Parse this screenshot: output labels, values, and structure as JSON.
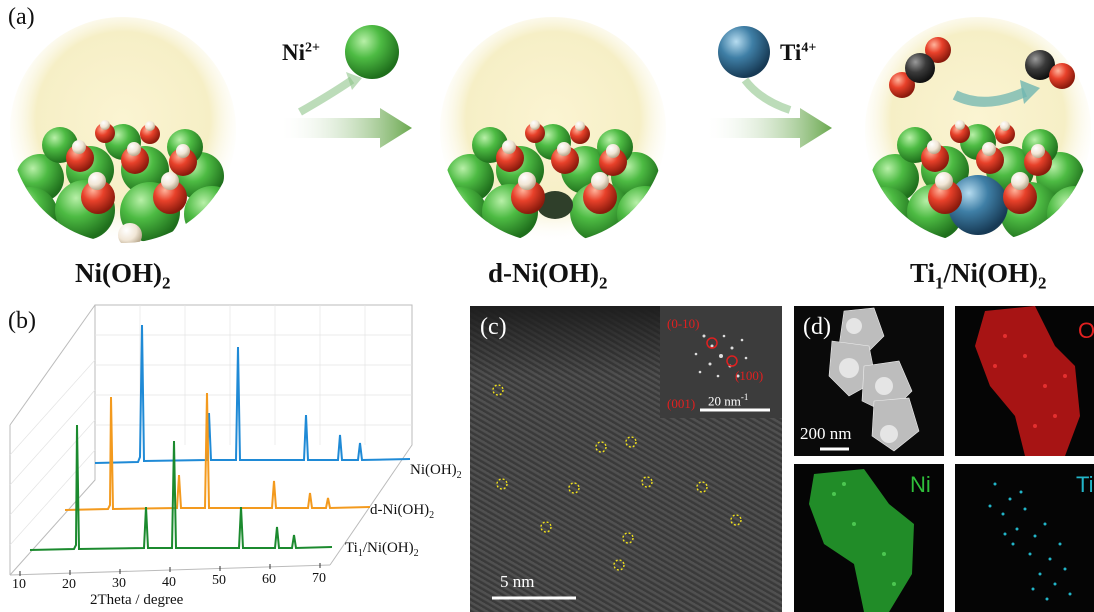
{
  "panel_a": {
    "label": "(a)",
    "species": [
      "Ni(OH)",
      "d-Ni(OH)",
      "Ti"
    ],
    "species_sub": "2",
    "ti_suffix_sub": "1",
    "ti_suffix": "/Ni(OH)",
    "ion1": "Ni",
    "ion1_sup": "2+",
    "ion2": "Ti",
    "ion2_sup": "4+"
  },
  "panel_b": {
    "label": "(b)",
    "traces": [
      {
        "name": "Ni(OH)",
        "sub": "2",
        "color": "#1f8ad6"
      },
      {
        "name": "d-Ni(OH)",
        "sub": "2",
        "color": "#f39a1e"
      },
      {
        "name": "Ti",
        "sub": "1",
        "name2": "/Ni(OH)",
        "sub2": "2",
        "color": "#1b8a2e"
      }
    ],
    "x_ticks": [
      "10",
      "20",
      "30",
      "40",
      "50",
      "60",
      "70"
    ],
    "xlabel": "2Theta / degree"
  },
  "panel_c": {
    "label": "(c)",
    "fft_labels": [
      "(0-10)",
      "(100)",
      "(001)"
    ],
    "fft_scale": "20 nm",
    "fft_scale_sup": "-1",
    "scale": "5 nm"
  },
  "panel_d": {
    "label": "(d)",
    "scale": "200 nm",
    "maps": [
      {
        "element": "O",
        "color": "#e02020"
      },
      {
        "element": "Ni",
        "color": "#2fbf3a"
      },
      {
        "element": "Ti",
        "color": "#22b5c8"
      }
    ]
  }
}
